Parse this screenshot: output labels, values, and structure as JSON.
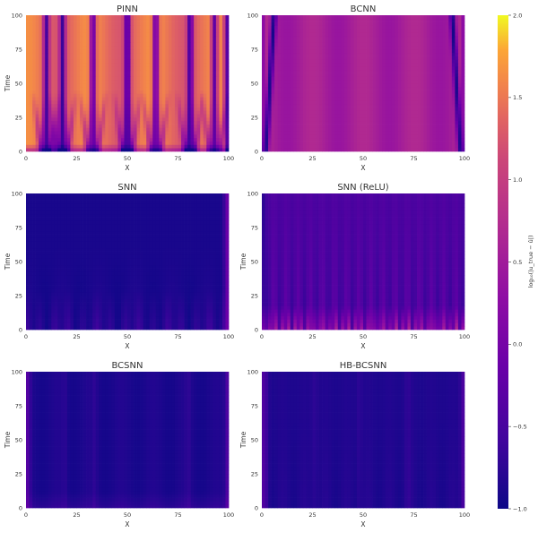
{
  "figure": {
    "colormap": "plasma",
    "colorbar": {
      "label": "log₁₀(|u_true − û|)",
      "min": -1.0,
      "max": 2.0,
      "ticks": [
        "2.0",
        "1.5",
        "1.0",
        "0.5",
        "0.0",
        "−0.5",
        "−1.0"
      ]
    }
  },
  "chart_data": [
    {
      "type": "heatmap",
      "title": "PINN",
      "xlabel": "X",
      "ylabel": "Time",
      "xlim": [
        0,
        100
      ],
      "ylim": [
        0,
        100
      ],
      "xticks": [
        "0",
        "25",
        "50",
        "75",
        "100"
      ],
      "yticks": [
        "0",
        "25",
        "50",
        "75",
        "100"
      ],
      "value_range_log10": [
        -1.0,
        1.8
      ],
      "dark_stripes_x": [
        10,
        18,
        33,
        50,
        64,
        81,
        93
      ]
    },
    {
      "type": "heatmap",
      "title": "BCNN",
      "xlabel": "X",
      "ylabel": "",
      "xlim": [
        0,
        100
      ],
      "ylim": [
        0,
        100
      ],
      "xticks": [
        "0",
        "25",
        "50",
        "75",
        "100"
      ],
      "yticks": [
        "0",
        "25",
        "50",
        "75",
        "100"
      ],
      "value_range_log10": [
        -1.0,
        0.9
      ]
    },
    {
      "type": "heatmap",
      "title": "SNN",
      "xlabel": "X",
      "ylabel": "Time",
      "xlim": [
        0,
        100
      ],
      "ylim": [
        0,
        100
      ],
      "xticks": [
        "0",
        "25",
        "50",
        "75",
        "100"
      ],
      "yticks": [
        "0",
        "25",
        "50",
        "75",
        "100"
      ],
      "value_range_log10": [
        -1.0,
        0.2
      ]
    },
    {
      "type": "heatmap",
      "title": "SNN (ReLU)",
      "xlabel": "X",
      "ylabel": "Time",
      "xlim": [
        0,
        100
      ],
      "ylim": [
        0,
        100
      ],
      "xticks": [
        "0",
        "25",
        "50",
        "75",
        "100"
      ],
      "yticks": [
        "0",
        "25",
        "50",
        "75",
        "100"
      ],
      "value_range_log10": [
        -1.0,
        0.9
      ]
    },
    {
      "type": "heatmap",
      "title": "BCSNN",
      "xlabel": "X",
      "ylabel": "Time",
      "xlim": [
        0,
        100
      ],
      "ylim": [
        0,
        100
      ],
      "xticks": [
        "0",
        "25",
        "50",
        "75",
        "100"
      ],
      "yticks": [
        "0",
        "25",
        "50",
        "75",
        "100"
      ],
      "value_range_log10": [
        -1.0,
        -0.2
      ]
    },
    {
      "type": "heatmap",
      "title": "HB-BCSNN",
      "xlabel": "X",
      "ylabel": "Time",
      "xlim": [
        0,
        100
      ],
      "ylim": [
        0,
        100
      ],
      "xticks": [
        "0",
        "25",
        "50",
        "75",
        "100"
      ],
      "yticks": [
        "0",
        "25",
        "50",
        "75",
        "100"
      ],
      "value_range_log10": [
        -1.0,
        -0.3
      ]
    }
  ]
}
